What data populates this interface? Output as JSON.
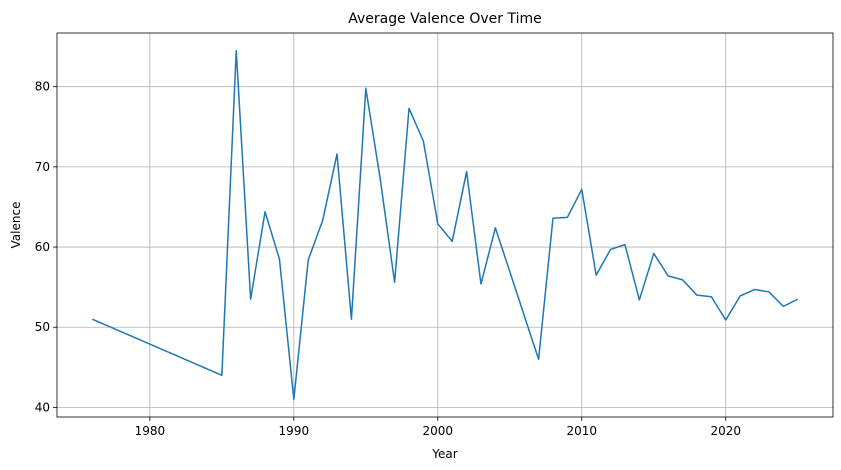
{
  "chart_data": {
    "type": "line",
    "title": "Average Valence Over Time",
    "xlabel": "Year",
    "ylabel": "Valence",
    "xlim": [
      1972.55,
      1928.45
    ],
    "ylim": [
      38.8,
      86.7
    ],
    "xticks": [
      1980,
      1990,
      2000,
      2010,
      2020
    ],
    "yticks": [
      40,
      50,
      60,
      70,
      80
    ],
    "grid": true,
    "legend": "none",
    "series": [
      {
        "color": "#1f77b4",
        "x": [
          1976,
          1985,
          1986,
          1987,
          1988,
          1989,
          1990,
          1991,
          1992,
          1993,
          1994,
          1995,
          1996,
          1997,
          1998,
          1999,
          2000,
          2001,
          2002,
          2003,
          2004,
          2007,
          2008,
          2009,
          2010,
          2011,
          2012,
          2013,
          2014,
          2015,
          2016,
          2017,
          2018,
          2019,
          2020,
          2021,
          2022,
          2023,
          2024,
          2025
        ],
        "y": [
          51.0,
          44.0,
          84.5,
          53.5,
          64.4,
          58.5,
          41.0,
          58.4,
          63.3,
          71.6,
          51.0,
          79.8,
          68.5,
          55.6,
          77.3,
          73.2,
          62.9,
          60.7,
          69.4,
          55.4,
          62.4,
          46.0,
          63.6,
          63.7,
          67.2,
          56.5,
          59.7,
          60.3,
          53.4,
          59.2,
          56.4,
          55.9,
          54.0,
          53.8,
          50.9,
          53.9,
          54.7,
          54.4,
          52.6,
          53.5
        ]
      }
    ]
  }
}
